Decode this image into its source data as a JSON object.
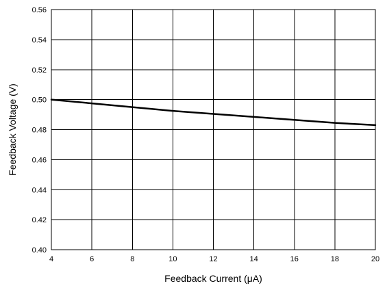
{
  "chart_data": {
    "type": "line",
    "xlabel": "Feedback Current (μA)",
    "ylabel": "Feedback Voltage (V)",
    "xlim": [
      4,
      20
    ],
    "ylim": [
      0.4,
      0.56
    ],
    "xticks": [
      4,
      6,
      8,
      10,
      12,
      14,
      16,
      18,
      20
    ],
    "yticks": [
      0.4,
      0.42,
      0.44,
      0.46,
      0.48,
      0.5,
      0.52,
      0.54,
      0.56
    ],
    "ytick_labels": [
      "0.40",
      "0.42",
      "0.44",
      "0.46",
      "0.48",
      "0.50",
      "0.52",
      "0.54",
      "0.56"
    ],
    "grid": true,
    "series": [
      {
        "color": "#000000",
        "x": [
          4,
          6,
          8,
          10,
          12,
          14,
          16,
          18,
          20
        ],
        "y": [
          0.5,
          0.4975,
          0.495,
          0.4925,
          0.4905,
          0.4885,
          0.4865,
          0.4845,
          0.483
        ]
      }
    ]
  }
}
